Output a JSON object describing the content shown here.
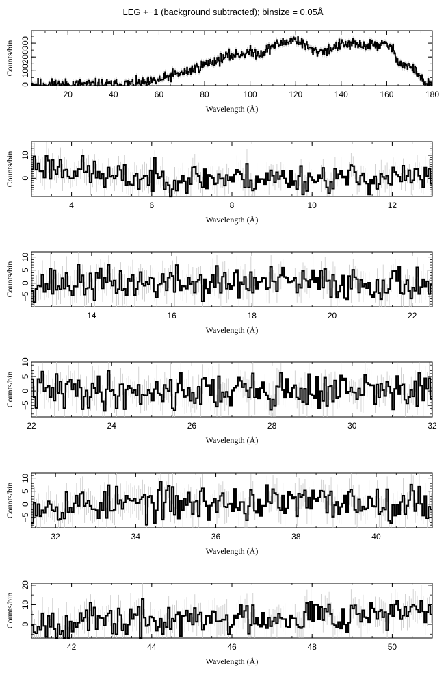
{
  "title": "LEG +−1 (background subtracted); binsize = 0.05Å",
  "chart_data": [
    {
      "type": "line",
      "xlabel": "Wavelength (Å)",
      "ylabel": "Counts/bin",
      "xlim": [
        4,
        180
      ],
      "ylim": [
        -8,
        390
      ],
      "xticks": [
        20,
        40,
        60,
        80,
        100,
        120,
        140,
        160,
        180
      ],
      "yticks": [
        0,
        100,
        200,
        300
      ],
      "ytick_labels": [
        "0",
        "100",
        "200",
        "300"
      ],
      "profile": [
        [
          4,
          3
        ],
        [
          20,
          0
        ],
        [
          40,
          0
        ],
        [
          55,
          10
        ],
        [
          62,
          40
        ],
        [
          66,
          70
        ],
        [
          70,
          80
        ],
        [
          80,
          145
        ],
        [
          90,
          205
        ],
        [
          100,
          235
        ],
        [
          105,
          225
        ],
        [
          110,
          280
        ],
        [
          115,
          305
        ],
        [
          120,
          330
        ],
        [
          125,
          275
        ],
        [
          128,
          240
        ],
        [
          133,
          245
        ],
        [
          140,
          290
        ],
        [
          150,
          285
        ],
        [
          160,
          290
        ],
        [
          162,
          270
        ],
        [
          166,
          150
        ],
        [
          170,
          130
        ],
        [
          174,
          80
        ],
        [
          176,
          15
        ],
        [
          180,
          0
        ]
      ],
      "amplitude": 20,
      "seed": 11
    },
    {
      "type": "line",
      "xlabel": "Wavelength (Å)",
      "ylabel": "Counts/bin",
      "xlim": [
        3,
        13
      ],
      "ylim": [
        -8,
        16
      ],
      "xticks": [
        4,
        6,
        8,
        10,
        12
      ],
      "yticks": [
        0,
        10
      ],
      "ytick_labels": [
        "0",
        "10"
      ],
      "profile": [
        [
          3,
          6
        ],
        [
          4,
          4
        ],
        [
          4.6,
          2
        ],
        [
          5,
          0
        ],
        [
          13,
          0
        ]
      ],
      "amplitude": 3.2,
      "seed": 23
    },
    {
      "type": "line",
      "xlabel": "Wavelength (Å)",
      "ylabel": "Counts/bin",
      "xlim": [
        12.5,
        22.5
      ],
      "ylim": [
        -9,
        12
      ],
      "xticks": [
        14,
        16,
        18,
        20,
        22
      ],
      "yticks": [
        -5,
        0,
        5,
        10
      ],
      "ytick_labels": [
        "−5",
        "0",
        "5",
        "10"
      ],
      "profile": [
        [
          12.5,
          0
        ],
        [
          22.5,
          0
        ]
      ],
      "amplitude": 3.2,
      "seed": 37
    },
    {
      "type": "line",
      "xlabel": "Wavelength (Å)",
      "ylabel": "Counts/bin",
      "xlim": [
        22,
        32
      ],
      "ylim": [
        -9,
        10
      ],
      "xticks": [
        22,
        24,
        26,
        28,
        30,
        32
      ],
      "yticks": [
        -5,
        0,
        5,
        10
      ],
      "ytick_labels": [
        "−5",
        "0",
        "5",
        "10"
      ],
      "profile": [
        [
          22,
          0
        ],
        [
          32,
          0
        ]
      ],
      "amplitude": 3.2,
      "seed": 41
    },
    {
      "type": "line",
      "xlabel": "Wavelength (Å)",
      "ylabel": "Counts/bin",
      "xlim": [
        31.4,
        41.4
      ],
      "ylim": [
        -9,
        12
      ],
      "xticks": [
        32,
        34,
        36,
        38,
        40
      ],
      "yticks": [
        -5,
        0,
        5,
        10
      ],
      "ytick_labels": [
        "−5",
        "0",
        "5",
        "10"
      ],
      "profile": [
        [
          31.4,
          0
        ],
        [
          41.4,
          1
        ]
      ],
      "amplitude": 3.4,
      "seed": 53
    },
    {
      "type": "line",
      "xlabel": "Wavelength (Å)",
      "ylabel": "Counts/bin",
      "xlim": [
        41,
        51
      ],
      "ylim": [
        -7,
        21
      ],
      "xticks": [
        42,
        44,
        46,
        48,
        50
      ],
      "yticks": [
        0,
        10,
        20
      ],
      "ytick_labels": [
        "0",
        "10",
        "20"
      ],
      "profile": [
        [
          41,
          1
        ],
        [
          45,
          2
        ],
        [
          48,
          5
        ],
        [
          51,
          6
        ]
      ],
      "amplitude": 4.2,
      "seed": 67
    }
  ]
}
